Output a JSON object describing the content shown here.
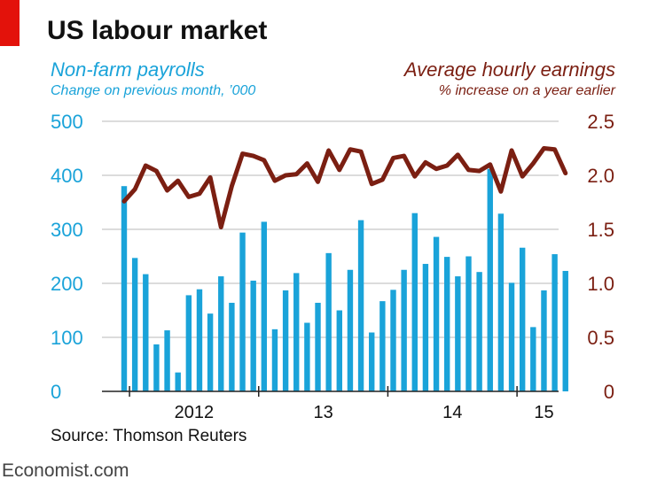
{
  "title": "US labour market",
  "left_axis": {
    "title": "Non-farm payrolls",
    "subtitle": "Change on previous month, ’000",
    "color": "#1aa3d9"
  },
  "right_axis": {
    "title": "Average hourly earnings",
    "subtitle": "% increase on a year earlier",
    "color": "#7b1f12"
  },
  "source": "Source: Thomson Reuters",
  "brand": "Economist.com",
  "chart_data": {
    "type": "bar",
    "title": "US labour market",
    "x_start": "2011-12",
    "x_tick_labels": [
      "2012",
      "13",
      "14",
      "15"
    ],
    "y_left": {
      "ylim": [
        0,
        500
      ],
      "ticks": [
        "500",
        "400",
        "300",
        "200",
        "100",
        "0"
      ]
    },
    "y_right": {
      "ylim": [
        0,
        2.5
      ],
      "ticks": [
        "2.5",
        "2.0",
        "1.5",
        "1.0",
        "0.5",
        "0"
      ]
    },
    "grid": true,
    "series": [
      {
        "name": "Non-farm payrolls",
        "type": "bar",
        "axis": "left",
        "color": "#1aa3d9",
        "values": [
          380,
          247,
          217,
          87,
          113,
          35,
          178,
          189,
          144,
          213,
          164,
          294,
          205,
          314,
          115,
          187,
          219,
          127,
          164,
          256,
          150,
          225,
          317,
          109,
          167,
          188,
          225,
          330,
          236,
          286,
          249,
          213,
          250,
          221,
          412,
          329,
          201,
          266,
          119,
          187,
          254,
          223
        ]
      },
      {
        "name": "Average hourly earnings",
        "type": "line",
        "axis": "right",
        "color": "#7b1f12",
        "values": [
          1.76,
          1.87,
          2.09,
          2.04,
          1.86,
          1.95,
          1.8,
          1.83,
          1.98,
          1.52,
          1.9,
          2.2,
          2.18,
          2.14,
          1.95,
          2.0,
          2.01,
          2.11,
          1.94,
          2.23,
          2.05,
          2.24,
          2.22,
          1.92,
          1.96,
          2.16,
          2.18,
          1.99,
          2.12,
          2.06,
          2.09,
          2.19,
          2.05,
          2.04,
          2.1,
          1.85,
          2.23,
          1.99,
          2.11,
          2.25,
          2.24,
          2.02
        ]
      }
    ]
  }
}
